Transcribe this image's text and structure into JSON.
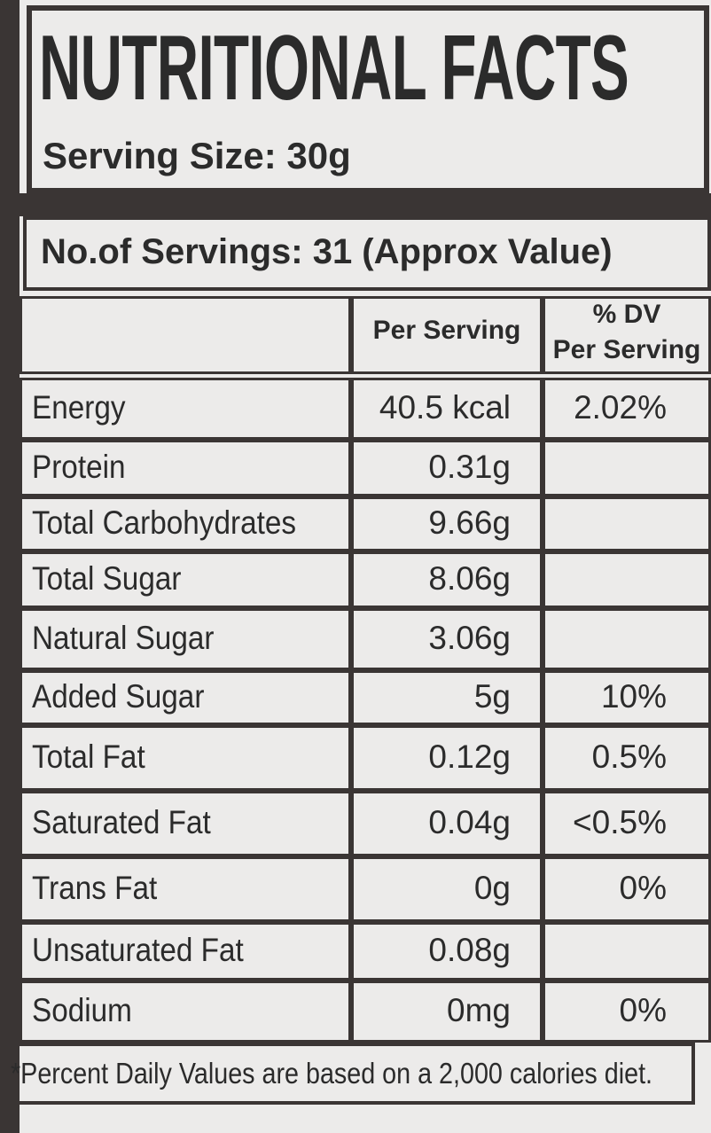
{
  "header": {
    "title": "NUTRITIONAL FACTS",
    "serving_size": "Serving Size: 30g",
    "servings": "No.of Servings: 31 (Approx Value)"
  },
  "table": {
    "amount_header": "Per Serving",
    "dv_header": [
      "% DV",
      "Per Serving"
    ],
    "rows": [
      {
        "name": "Energy",
        "amount": "40.5 kcal",
        "dv": "2.02%"
      },
      {
        "name": "Protein",
        "amount": "0.31g"
      },
      {
        "name": "Total Carbohydrates",
        "amount": "9.66g"
      },
      {
        "name": "Total Sugar",
        "amount": "8.06g"
      },
      {
        "name": "Natural Sugar",
        "amount": "3.06g"
      },
      {
        "name": "Added Sugar",
        "amount": "5g",
        "dv": "10%"
      },
      {
        "name": "Total Fat",
        "amount": "0.12g",
        "dv": "0.5%"
      },
      {
        "name": "Saturated Fat",
        "amount": "0.04g",
        "dv": "<0.5%"
      },
      {
        "name": "Trans Fat",
        "amount": "0g",
        "dv": "0%"
      },
      {
        "name": "Unsaturated Fat",
        "amount": "0.08g"
      },
      {
        "name": "Sodium",
        "amount": "0mg",
        "dv": "0%"
      }
    ]
  },
  "footnote": "*Percent Daily Values are based on a 2,000 calories diet."
}
